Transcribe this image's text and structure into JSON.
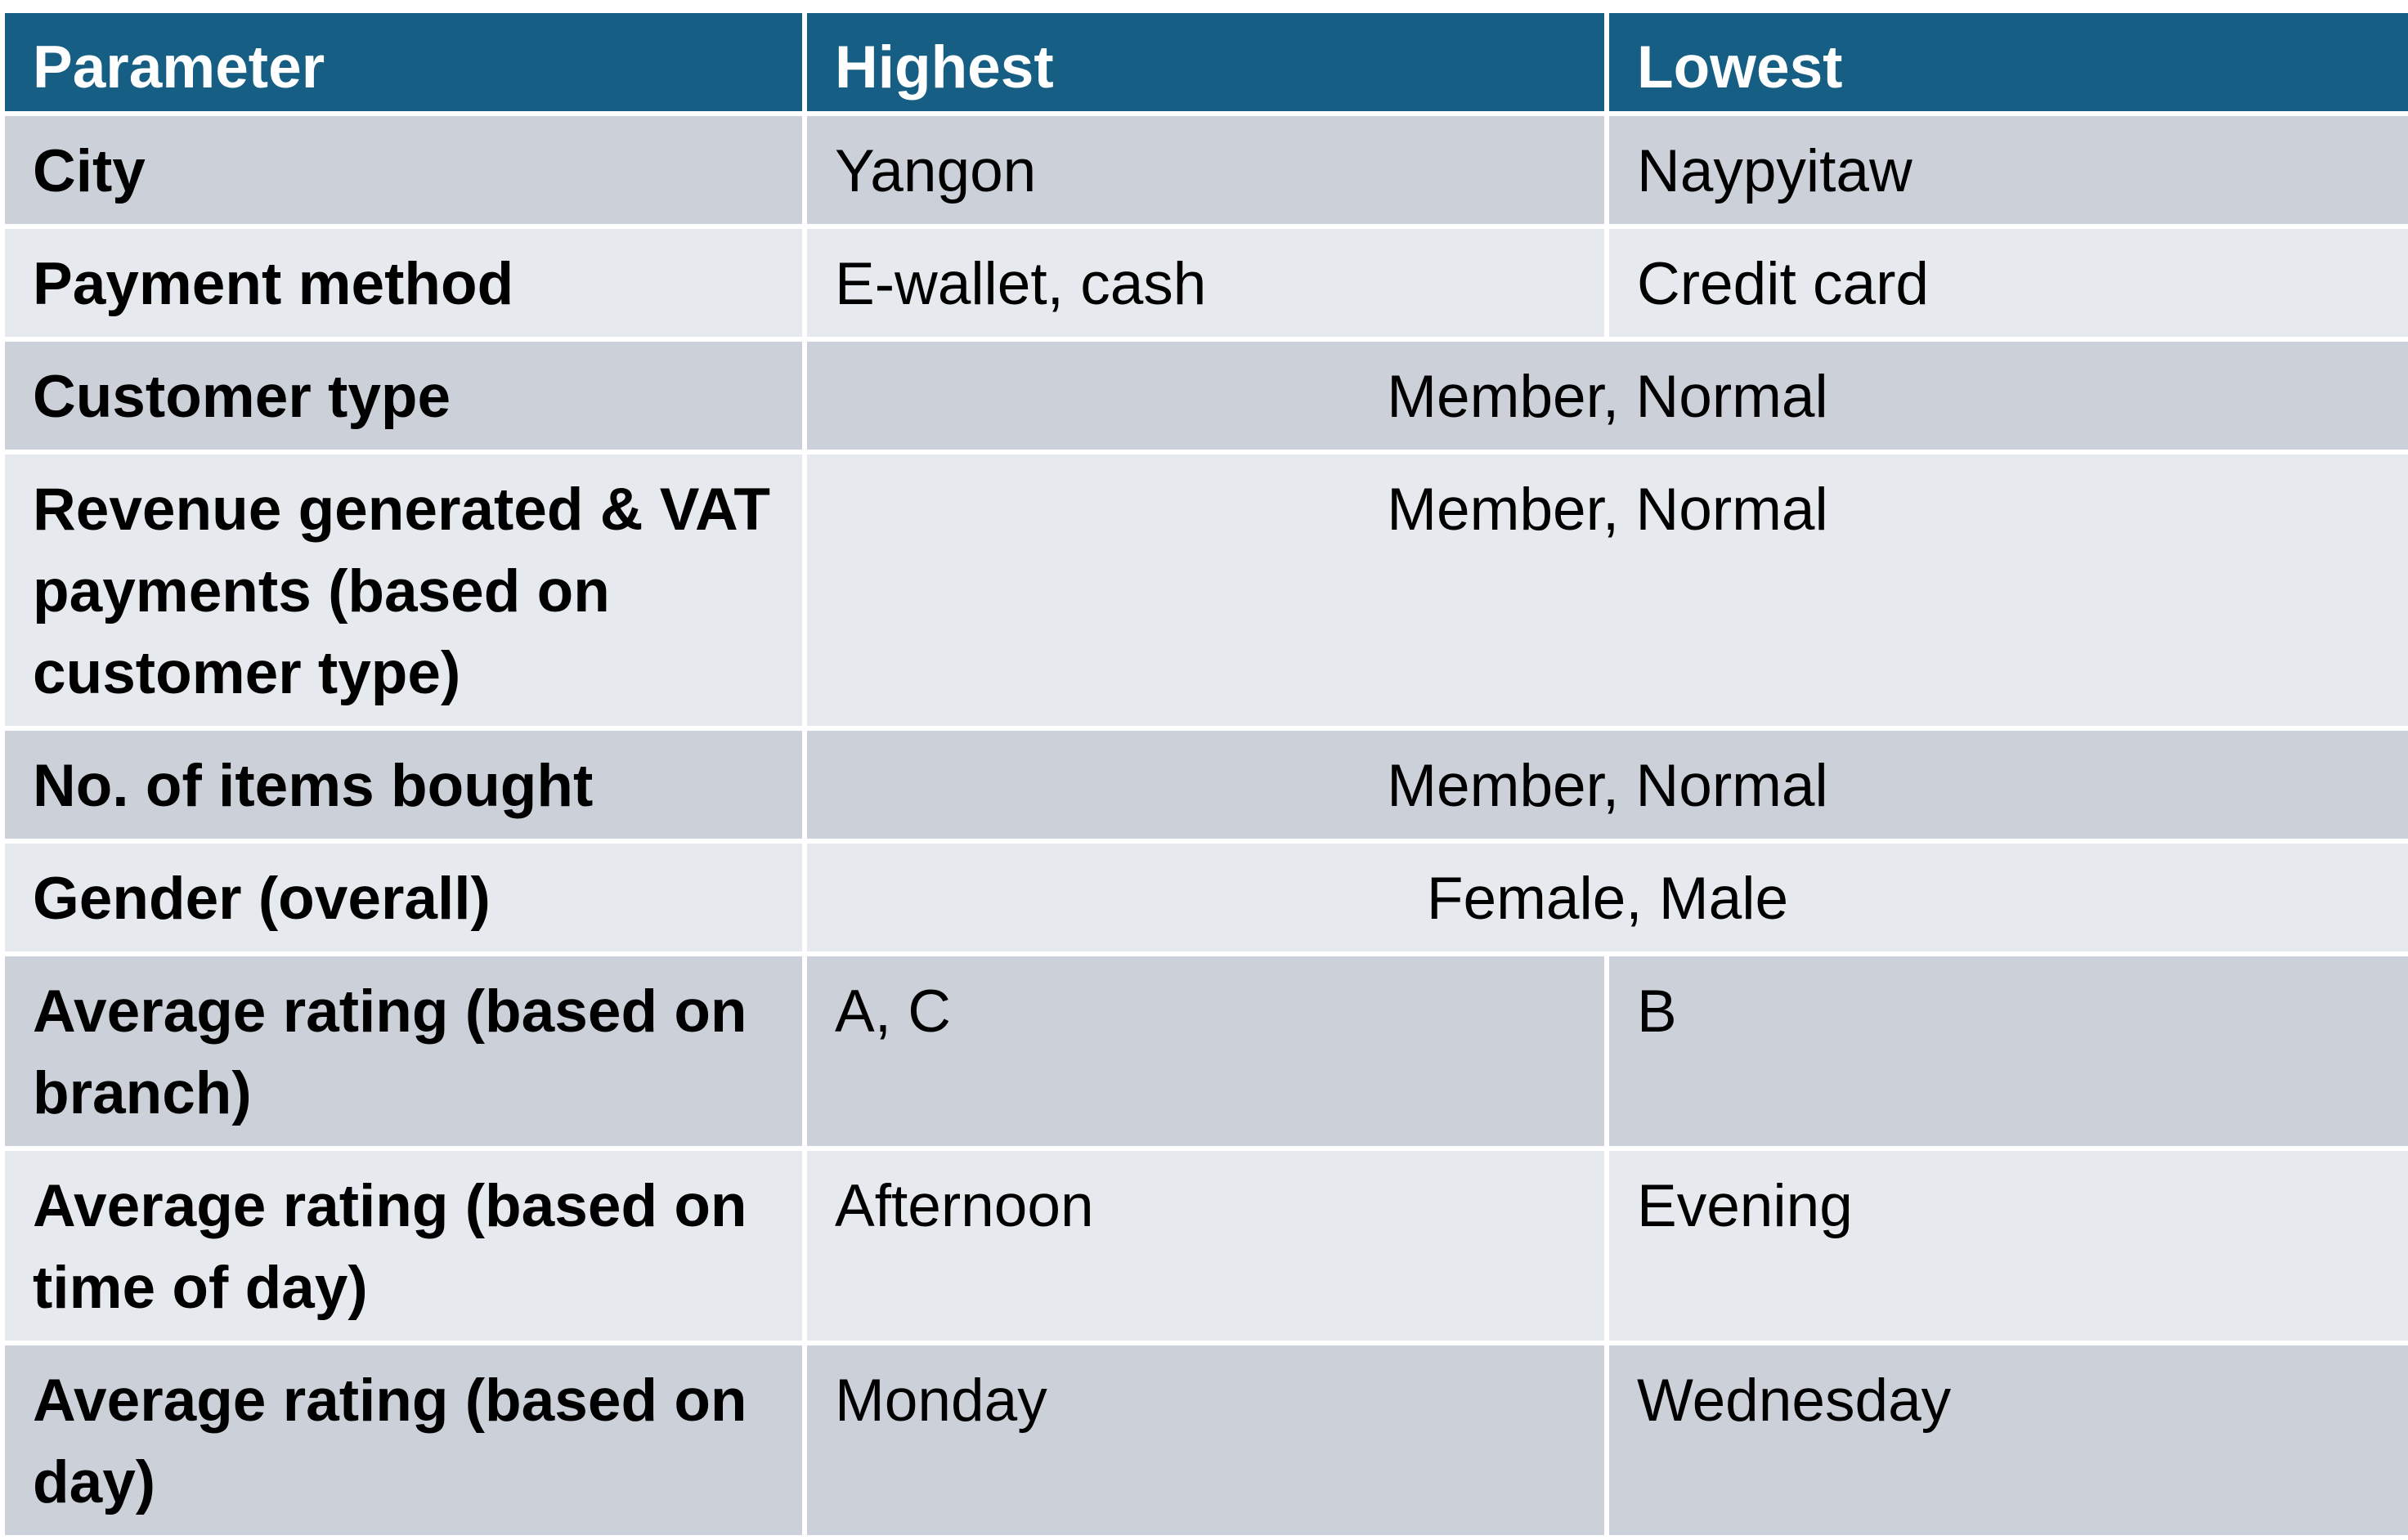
{
  "table": {
    "headers": [
      "Parameter",
      "Highest",
      "Lowest"
    ],
    "rows": [
      {
        "parameter": "City",
        "highest": "Yangon",
        "lowest": "Naypyitaw"
      },
      {
        "parameter": "Payment method",
        "highest": "E-wallet, cash",
        "lowest": "Credit card"
      },
      {
        "parameter": "Customer type",
        "merged": "Member, Normal"
      },
      {
        "parameter": "Revenue generated & VAT payments (based on customer type)",
        "merged": "Member, Normal"
      },
      {
        "parameter": "No. of items bought",
        "merged": "Member, Normal"
      },
      {
        "parameter": "Gender (overall)",
        "merged": "Female, Male"
      },
      {
        "parameter": "Average rating (based on branch)",
        "highest": "A, C",
        "lowest": "B"
      },
      {
        "parameter": "Average rating (based on time of day)",
        "highest": "Afternoon",
        "lowest": "Evening"
      },
      {
        "parameter": "Average rating (based on day)",
        "highest": "Monday",
        "lowest": "Wednesday"
      }
    ]
  },
  "colors": {
    "header_bg": "#165e83",
    "row_dark": "#ccd1d9",
    "row_light": "#e6e9ed",
    "border": "#ffffff"
  }
}
